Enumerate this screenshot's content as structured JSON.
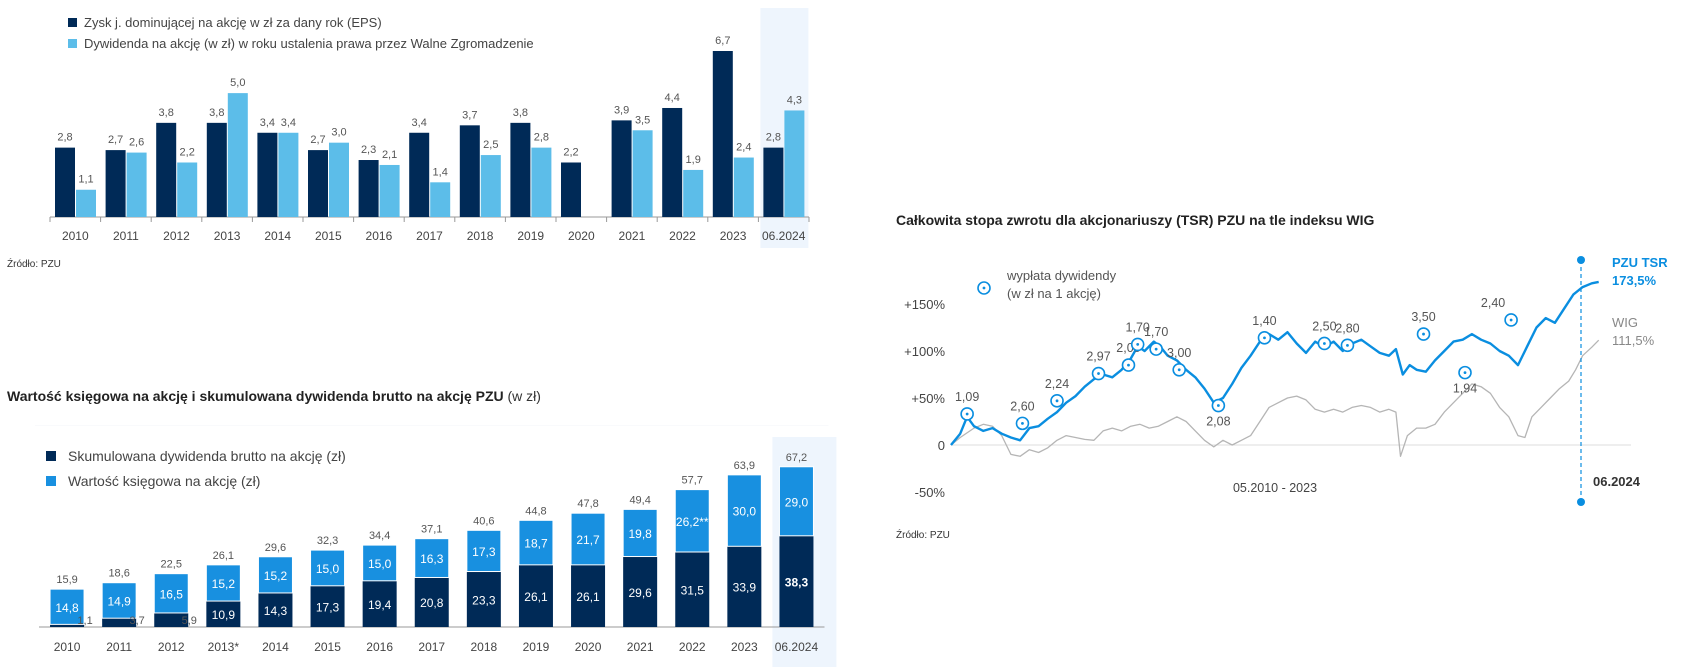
{
  "colors": {
    "dark": "#002a57",
    "light": "#5cbde9",
    "mid": "#1890e0",
    "tsr": "#0a8ee0",
    "wig": "#b5b5b5",
    "highlight": "#eef5fd"
  },
  "chart1": {
    "legend": [
      "Zysk j. dominującej na akcję w zł za dany rok (EPS)",
      "Dywidenda na akcję (w zł) w roku ustalenia prawa przez Walne Zgromadzenie"
    ],
    "source": "Źródło: PZU"
  },
  "chart2": {
    "title_bold": "Wartość księgowa na akcję i skumulowana dywidenda brutto na akcję PZU",
    "title_rest": " (w zł)",
    "legend": [
      "Skumulowana dywidenda brutto na akcję (zł)",
      "Wartość księgowa na akcję (zł)"
    ]
  },
  "chart3": {
    "title": "Całkowita stopa zwrotu dla akcjonariuszy (TSR) PZU na tle indeksu WIG",
    "legend_text_1": "wypłata dywidendy",
    "legend_text_2": "(w zł na 1 akcję)",
    "tsr_label": "PZU TSR",
    "tsr_value": "173,5%",
    "wig_label": "WIG",
    "wig_value": "111,5%",
    "period_label": "05.2010 - 2023",
    "date_label": "06.2024",
    "source": "Źródło: PZU"
  },
  "chart_data": [
    {
      "type": "bar",
      "title": "",
      "categories": [
        "2010",
        "2011",
        "2012",
        "2013",
        "2014",
        "2015",
        "2016",
        "2017",
        "2018",
        "2019",
        "2020",
        "2021",
        "2022",
        "2023",
        "06.2024"
      ],
      "series": [
        {
          "name": "Zysk j. dominującej na akcję w zł za dany rok (EPS)",
          "values": [
            2.8,
            2.7,
            3.8,
            3.8,
            3.4,
            2.7,
            2.3,
            3.4,
            3.7,
            3.8,
            2.2,
            3.9,
            4.4,
            6.7,
            2.8
          ]
        },
        {
          "name": "Dywidenda na akcję (w zł) w roku ustalenia prawa przez Walne Zgromadzenie",
          "values": [
            1.1,
            2.6,
            2.2,
            5.0,
            3.4,
            3.0,
            2.1,
            1.4,
            2.5,
            2.8,
            null,
            3.5,
            1.9,
            2.4,
            4.3
          ]
        }
      ],
      "labels_eps": [
        "2,8",
        "2,7",
        "3,8",
        "3,8",
        "3,4",
        "2,7",
        "2,3",
        "3,4",
        "3,7",
        "3,8",
        "2,2",
        "3,9",
        "4,4",
        "6,7",
        "2,8"
      ],
      "labels_div": [
        "1,1",
        "2,6",
        "2,2",
        "5,0",
        "3,4",
        "3,0",
        "2,1",
        "1,4",
        "2,5",
        "2,8",
        "",
        "3,5",
        "1,9",
        "2,4",
        "4,3"
      ],
      "ylim": [
        0,
        7
      ]
    },
    {
      "type": "bar",
      "stacked": true,
      "title": "Wartość księgowa na akcję i skumulowana dywidenda brutto na akcję PZU (w zł)",
      "categories": [
        "2010",
        "2011",
        "2012",
        "2013*",
        "2014",
        "2015",
        "2016",
        "2017",
        "2018",
        "2019",
        "2020",
        "2021",
        "2022",
        "2023",
        "06.2024"
      ],
      "series": [
        {
          "name": "Skumulowana dywidenda brutto na akcję (zł)",
          "values": [
            1.1,
            3.7,
            5.9,
            10.9,
            14.3,
            17.3,
            19.4,
            20.8,
            23.3,
            26.1,
            26.1,
            29.6,
            31.5,
            33.9,
            38.3
          ]
        },
        {
          "name": "Wartość księgowa na akcję (zł)",
          "values": [
            14.8,
            14.9,
            16.5,
            15.2,
            15.2,
            15.0,
            15.0,
            16.3,
            17.3,
            18.7,
            21.7,
            19.8,
            26.2,
            30.0,
            29.0
          ]
        }
      ],
      "totals": [
        "15,9",
        "18,6",
        "22,5",
        "26,1",
        "29,6",
        "32,3",
        "34,4",
        "37,1",
        "40,6",
        "44,8",
        "47,8",
        "49,4",
        "57,7",
        "63,9",
        "67,2"
      ],
      "labels_div": [
        "1,1",
        "3,7",
        "5,9",
        "10,9",
        "14,3",
        "17,3",
        "19,4",
        "20,8",
        "23,3",
        "26,1",
        "26,1",
        "29,6",
        "31,5",
        "33,9",
        "38,3"
      ],
      "labels_bv": [
        "14,8",
        "14,9",
        "16,5",
        "15,2",
        "15,2",
        "15,0",
        "15,0",
        "16,3",
        "17,3",
        "18,7",
        "21,7",
        "19,8",
        "26,2**",
        "30,0",
        "29,0"
      ],
      "ylim": [
        0,
        70
      ]
    },
    {
      "type": "line",
      "title": "Całkowita stopa zwrotu dla akcjonariuszy (TSR) PZU na tle indeksu WIG",
      "ylabel": "",
      "ylim": [
        -50,
        175
      ],
      "yticks": [
        "+150%",
        "+100%",
        "+50%",
        "0",
        "-50%"
      ],
      "ytick_values": [
        150,
        100,
        50,
        0,
        -50
      ],
      "xlim": [
        2010.4,
        2024.5
      ],
      "series": [
        {
          "name": "PZU TSR",
          "final": 173.5,
          "points": [
            [
              2010.4,
              0
            ],
            [
              2010.6,
              12
            ],
            [
              2010.75,
              30
            ],
            [
              2010.9,
              20
            ],
            [
              2011.1,
              15
            ],
            [
              2011.3,
              18
            ],
            [
              2011.5,
              12
            ],
            [
              2011.7,
              8
            ],
            [
              2011.9,
              5
            ],
            [
              2012.1,
              18
            ],
            [
              2012.3,
              20
            ],
            [
              2012.5,
              28
            ],
            [
              2012.7,
              35
            ],
            [
              2012.9,
              45
            ],
            [
              2013.1,
              52
            ],
            [
              2013.3,
              62
            ],
            [
              2013.5,
              70
            ],
            [
              2013.7,
              75
            ],
            [
              2013.9,
              72
            ],
            [
              2014.1,
              80
            ],
            [
              2014.3,
              92
            ],
            [
              2014.45,
              105
            ],
            [
              2014.6,
              100
            ],
            [
              2014.8,
              110
            ],
            [
              2014.95,
              104
            ],
            [
              2015.1,
              95
            ],
            [
              2015.3,
              90
            ],
            [
              2015.5,
              80
            ],
            [
              2015.7,
              72
            ],
            [
              2015.9,
              60
            ],
            [
              2016.1,
              45
            ],
            [
              2016.3,
              50
            ],
            [
              2016.5,
              65
            ],
            [
              2016.7,
              82
            ],
            [
              2016.9,
              95
            ],
            [
              2017.1,
              110
            ],
            [
              2017.3,
              118
            ],
            [
              2017.5,
              112
            ],
            [
              2017.7,
              120
            ],
            [
              2017.9,
              108
            ],
            [
              2018.1,
              98
            ],
            [
              2018.3,
              110
            ],
            [
              2018.5,
              104
            ],
            [
              2018.7,
              110
            ],
            [
              2018.9,
              100
            ],
            [
              2019.1,
              108
            ],
            [
              2019.3,
              112
            ],
            [
              2019.5,
              105
            ],
            [
              2019.7,
              98
            ],
            [
              2019.9,
              95
            ],
            [
              2020.05,
              102
            ],
            [
              2020.2,
              75
            ],
            [
              2020.35,
              85
            ],
            [
              2020.5,
              80
            ],
            [
              2020.7,
              78
            ],
            [
              2020.9,
              90
            ],
            [
              2021.1,
              100
            ],
            [
              2021.3,
              110
            ],
            [
              2021.5,
              112
            ],
            [
              2021.7,
              118
            ],
            [
              2021.9,
              112
            ],
            [
              2022.1,
              108
            ],
            [
              2022.3,
              100
            ],
            [
              2022.5,
              95
            ],
            [
              2022.7,
              85
            ],
            [
              2022.9,
              105
            ],
            [
              2023.1,
              125
            ],
            [
              2023.3,
              135
            ],
            [
              2023.5,
              130
            ],
            [
              2023.7,
              145
            ],
            [
              2023.9,
              160
            ],
            [
              2024.1,
              168
            ],
            [
              2024.3,
              172
            ],
            [
              2024.45,
              173.5
            ]
          ]
        },
        {
          "name": "WIG",
          "final": 111.5,
          "points": [
            [
              2010.4,
              0
            ],
            [
              2010.6,
              8
            ],
            [
              2010.9,
              18
            ],
            [
              2011.1,
              22
            ],
            [
              2011.3,
              20
            ],
            [
              2011.5,
              10
            ],
            [
              2011.7,
              -10
            ],
            [
              2011.9,
              -12
            ],
            [
              2012.1,
              -5
            ],
            [
              2012.3,
              -8
            ],
            [
              2012.5,
              -3
            ],
            [
              2012.7,
              5
            ],
            [
              2012.9,
              10
            ],
            [
              2013.1,
              8
            ],
            [
              2013.3,
              6
            ],
            [
              2013.5,
              5
            ],
            [
              2013.7,
              15
            ],
            [
              2013.9,
              18
            ],
            [
              2014.1,
              15
            ],
            [
              2014.3,
              20
            ],
            [
              2014.5,
              22
            ],
            [
              2014.7,
              18
            ],
            [
              2014.9,
              20
            ],
            [
              2015.1,
              25
            ],
            [
              2015.3,
              30
            ],
            [
              2015.5,
              25
            ],
            [
              2015.7,
              15
            ],
            [
              2015.9,
              5
            ],
            [
              2016.1,
              -2
            ],
            [
              2016.3,
              5
            ],
            [
              2016.5,
              0
            ],
            [
              2016.7,
              5
            ],
            [
              2016.9,
              10
            ],
            [
              2017.1,
              25
            ],
            [
              2017.3,
              40
            ],
            [
              2017.5,
              45
            ],
            [
              2017.7,
              50
            ],
            [
              2017.9,
              52
            ],
            [
              2018.1,
              48
            ],
            [
              2018.3,
              38
            ],
            [
              2018.5,
              35
            ],
            [
              2018.7,
              38
            ],
            [
              2018.9,
              35
            ],
            [
              2019.1,
              40
            ],
            [
              2019.3,
              42
            ],
            [
              2019.5,
              40
            ],
            [
              2019.7,
              35
            ],
            [
              2019.9,
              38
            ],
            [
              2020.05,
              35
            ],
            [
              2020.15,
              -12
            ],
            [
              2020.3,
              10
            ],
            [
              2020.5,
              18
            ],
            [
              2020.7,
              18
            ],
            [
              2020.9,
              22
            ],
            [
              2021.1,
              35
            ],
            [
              2021.3,
              45
            ],
            [
              2021.5,
              55
            ],
            [
              2021.7,
              65
            ],
            [
              2021.9,
              62
            ],
            [
              2022.1,
              55
            ],
            [
              2022.3,
              40
            ],
            [
              2022.5,
              30
            ],
            [
              2022.7,
              10
            ],
            [
              2022.85,
              8
            ],
            [
              2023.0,
              30
            ],
            [
              2023.2,
              40
            ],
            [
              2023.4,
              50
            ],
            [
              2023.6,
              60
            ],
            [
              2023.8,
              68
            ],
            [
              2023.95,
              80
            ],
            [
              2024.1,
              95
            ],
            [
              2024.3,
              104
            ],
            [
              2024.45,
              111.5
            ]
          ]
        }
      ],
      "dividends": [
        {
          "label": "1,09",
          "x": 2010.75,
          "y": 33
        },
        {
          "label": "2,60",
          "x": 2011.95,
          "y": 23
        },
        {
          "label": "2,24",
          "x": 2012.7,
          "y": 47
        },
        {
          "label": "2,97",
          "x": 2013.6,
          "y": 76
        },
        {
          "label": "2,00",
          "x": 2014.25,
          "y": 85
        },
        {
          "label": "1,70",
          "x": 2014.45,
          "y": 107
        },
        {
          "label": "1,70",
          "x": 2014.85,
          "y": 102
        },
        {
          "label": "3,00",
          "x": 2015.35,
          "y": 80
        },
        {
          "label": "2,08",
          "x": 2016.2,
          "y": 42
        },
        {
          "label": "1,40",
          "x": 2017.2,
          "y": 114
        },
        {
          "label": "2,50",
          "x": 2018.5,
          "y": 108
        },
        {
          "label": "2,80",
          "x": 2019.0,
          "y": 106
        },
        {
          "label": "3,50",
          "x": 2020.65,
          "y": 118
        },
        {
          "label": "1,94",
          "x": 2021.55,
          "y": 77
        },
        {
          "label": "2,40",
          "x": 2022.55,
          "y": 133
        }
      ]
    }
  ]
}
